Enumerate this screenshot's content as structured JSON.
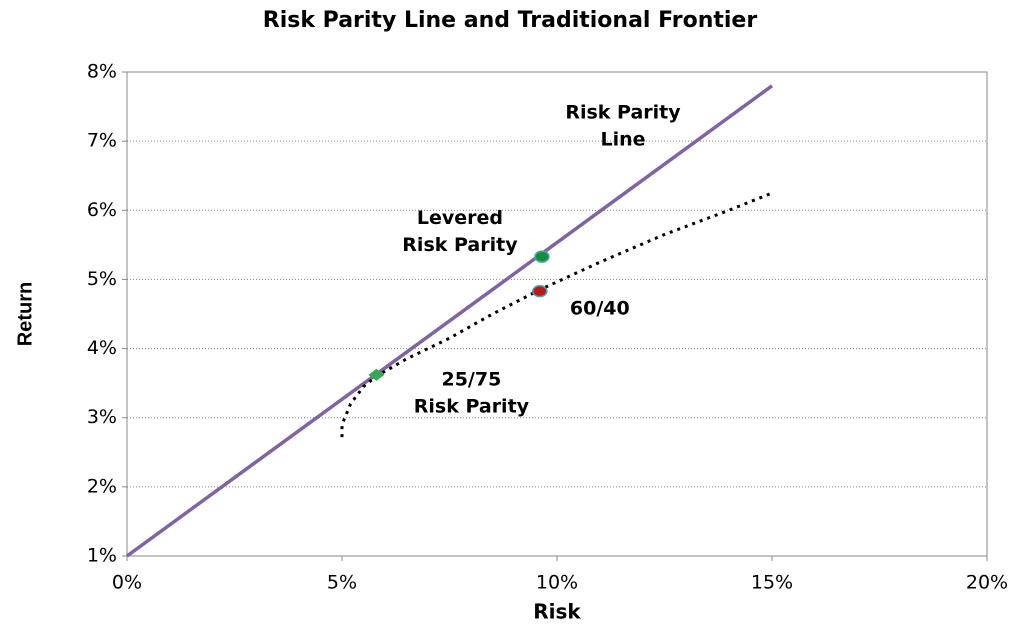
{
  "chart_data": {
    "type": "line",
    "title": "Risk Parity Line and Traditional Frontier",
    "x_label": "Risk",
    "y_label": "Return",
    "xlim": [
      0,
      20
    ],
    "ylim": [
      1,
      8
    ],
    "xticks": [
      {
        "value": 0,
        "label": "0%"
      },
      {
        "value": 5,
        "label": "5%"
      },
      {
        "value": 10,
        "label": "10%"
      },
      {
        "value": 15,
        "label": "15%"
      },
      {
        "value": 20,
        "label": "20%"
      }
    ],
    "yticks": [
      {
        "value": 1,
        "label": "1%"
      },
      {
        "value": 2,
        "label": "2%"
      },
      {
        "value": 3,
        "label": "3%"
      },
      {
        "value": 4,
        "label": "4%"
      },
      {
        "value": 5,
        "label": "5%"
      },
      {
        "value": 6,
        "label": "6%"
      },
      {
        "value": 7,
        "label": "7%"
      },
      {
        "value": 8,
        "label": "8%"
      }
    ],
    "grid": true,
    "series": [
      {
        "label": [
          "Risk Parity",
          "Line"
        ],
        "color": "#8064a2",
        "line": "solid",
        "x": [
          0,
          15
        ],
        "values": [
          1,
          7.8
        ]
      },
      {
        "color": "#000000",
        "line": "dotted",
        "x": [
          5.0,
          5.0,
          5.2,
          5.5,
          5.8,
          6.5,
          7.5,
          8.5,
          9.6,
          11,
          12.5,
          14,
          15
        ],
        "values": [
          2.72,
          2.9,
          3.2,
          3.45,
          3.6,
          3.85,
          4.15,
          4.5,
          4.85,
          5.25,
          5.65,
          6.0,
          6.25
        ]
      },
      {
        "label": [
          "Levered",
          "Risk Parity"
        ],
        "color": "#1a8a3c",
        "marker": "circle",
        "x": [
          9.65
        ],
        "values": [
          5.33
        ]
      },
      {
        "label": [
          "60/40"
        ],
        "color": "#c0161b",
        "marker": "circle",
        "x": [
          9.6
        ],
        "values": [
          4.83
        ]
      },
      {
        "label": [
          "25/75",
          "Risk Parity"
        ],
        "color": "#33a853",
        "marker": "diamond",
        "x": [
          5.8
        ],
        "values": [
          3.62
        ]
      }
    ]
  }
}
